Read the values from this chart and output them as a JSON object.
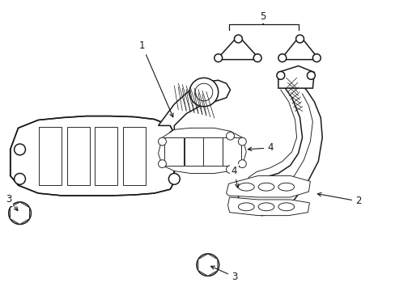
{
  "bg_color": "#ffffff",
  "line_color": "#1a1a1a",
  "figsize": [
    4.89,
    3.6
  ],
  "dpi": 100,
  "lw_main": 1.1,
  "lw_thin": 0.65,
  "lw_hatch": 0.5,
  "font_size": 8.5
}
